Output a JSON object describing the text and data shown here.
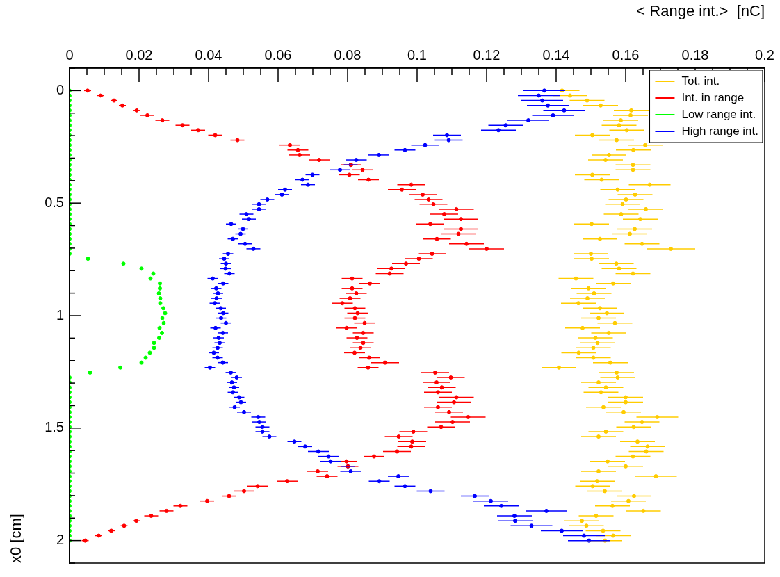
{
  "chart_data": {
    "type": "scatter",
    "xlabel": "< Range int.>  [nC]",
    "ylabel": "x0 [cm]",
    "xlim": [
      0,
      0.2
    ],
    "xticks": [
      0,
      {
        "value": 0.005,
        "label": null
      },
      {
        "value": 0.01,
        "label": null
      },
      {
        "value": 0.015,
        "label": null
      },
      0.02,
      {
        "value": 0.025,
        "label": null
      },
      {
        "value": 0.03,
        "label": null
      },
      {
        "value": 0.035,
        "label": null
      },
      0.04,
      {
        "value": 0.045,
        "label": null
      },
      {
        "value": 0.05,
        "label": null
      },
      {
        "value": 0.055,
        "label": null
      },
      0.06,
      {
        "value": 0.065,
        "label": null
      },
      {
        "value": 0.07,
        "label": null
      },
      {
        "value": 0.075,
        "label": null
      },
      0.08,
      {
        "value": 0.085,
        "label": null
      },
      {
        "value": 0.09,
        "label": null
      },
      {
        "value": 0.095,
        "label": null
      },
      0.1,
      {
        "value": 0.105,
        "label": null
      },
      {
        "value": 0.11,
        "label": null
      },
      {
        "value": 0.115,
        "label": null
      },
      0.12,
      {
        "value": 0.125,
        "label": null
      },
      {
        "value": 0.13,
        "label": null
      },
      {
        "value": 0.135,
        "label": null
      },
      0.14,
      {
        "value": 0.145,
        "label": null
      },
      {
        "value": 0.15,
        "label": null
      },
      {
        "value": 0.155,
        "label": null
      },
      0.16,
      {
        "value": 0.165,
        "label": null
      },
      {
        "value": 0.17,
        "label": null
      },
      {
        "value": 0.175,
        "label": null
      },
      0.18,
      {
        "value": 0.185,
        "label": null
      },
      {
        "value": 0.19,
        "label": null
      },
      {
        "value": 0.195,
        "label": null
      },
      0.2
    ],
    "ylim": [
      2.1,
      -0.1
    ],
    "yticks": [
      {
        "value": -0.1,
        "label": null
      },
      0,
      {
        "value": 0.1,
        "label": null
      },
      {
        "value": 0.2,
        "label": null
      },
      {
        "value": 0.3,
        "label": null
      },
      {
        "value": 0.4,
        "label": null
      },
      0.5,
      {
        "value": 0.6,
        "label": null
      },
      {
        "value": 0.7,
        "label": null
      },
      {
        "value": 0.8,
        "label": null
      },
      {
        "value": 0.9,
        "label": null
      },
      1,
      {
        "value": 1.1,
        "label": null
      },
      {
        "value": 1.2,
        "label": null
      },
      {
        "value": 1.3,
        "label": null
      },
      {
        "value": 1.4,
        "label": null
      },
      1.5,
      {
        "value": 1.6,
        "label": null
      },
      {
        "value": 1.7,
        "label": null
      },
      {
        "value": 1.8,
        "label": null
      },
      {
        "value": 1.9,
        "label": null
      },
      2,
      {
        "value": 2.1,
        "label": null
      }
    ],
    "legend": "top right",
    "marker": "circle",
    "series": [
      {
        "name": "Tot. int.",
        "color": "#ffcc00",
        "x": [
          0.1417,
          0.144,
          0.1489,
          0.1528,
          0.1616,
          0.1614,
          0.1586,
          0.1581,
          0.1603,
          0.1504,
          0.1574,
          0.1656,
          0.1622,
          0.1552,
          0.1542,
          0.1621,
          0.1621,
          0.1504,
          0.1531,
          0.1669,
          0.1577,
          0.1627,
          0.1601,
          0.1591,
          0.1658,
          0.1587,
          0.1642,
          0.1502,
          0.1626,
          0.1612,
          0.1526,
          0.1647,
          0.173,
          0.15,
          0.1502,
          0.1573,
          0.1581,
          0.1621,
          0.1457,
          0.1564,
          0.1493,
          0.1509,
          0.149,
          0.1464,
          0.1526,
          0.1546,
          0.1522,
          0.1569,
          0.1476,
          0.1551,
          0.1513,
          0.1519,
          0.1507,
          0.1465,
          0.1507,
          0.1556,
          0.1408,
          0.1574,
          0.1577,
          0.1522,
          0.1543,
          0.1529,
          0.16,
          0.16,
          0.1536,
          0.1594,
          0.1691,
          0.1647,
          0.1623,
          0.1543,
          0.1522,
          0.1634,
          0.1663,
          0.1659,
          0.1621,
          0.1548,
          0.16,
          0.1522,
          0.1687,
          0.1518,
          0.1505,
          0.154,
          0.1624,
          0.1608,
          0.1562,
          0.1651,
          0.1515,
          0.1474,
          0.1487,
          0.1535,
          0.1564,
          0.154
        ],
        "values": [
          0,
          0.022,
          0.044,
          0.066,
          0.088,
          0.11,
          0.132,
          0.154,
          0.176,
          0.198,
          0.22,
          0.242,
          0.264,
          0.286,
          0.308,
          0.33,
          0.352,
          0.374,
          0.396,
          0.418,
          0.44,
          0.462,
          0.484,
          0.505,
          0.527,
          0.549,
          0.571,
          0.593,
          0.615,
          0.637,
          0.659,
          0.681,
          0.703,
          0.725,
          0.747,
          0.769,
          0.791,
          0.813,
          0.835,
          0.857,
          0.879,
          0.901,
          0.923,
          0.945,
          0.967,
          0.989,
          1.011,
          1.033,
          1.055,
          1.077,
          1.099,
          1.121,
          1.143,
          1.165,
          1.187,
          1.209,
          1.231,
          1.253,
          1.275,
          1.297,
          1.319,
          1.341,
          1.363,
          1.385,
          1.407,
          1.429,
          1.451,
          1.473,
          1.495,
          1.516,
          1.538,
          1.56,
          1.582,
          1.604,
          1.626,
          1.648,
          1.67,
          1.692,
          1.714,
          1.736,
          1.758,
          1.78,
          1.802,
          1.824,
          1.846,
          1.868,
          1.89,
          1.912,
          1.934,
          1.956,
          1.978,
          2.0
        ],
        "xerrors": [
          0.005,
          0.005,
          0.005,
          0.005,
          0.005,
          0.005,
          0.005,
          0.005,
          0.005,
          0.005,
          0.005,
          0.005,
          0.005,
          0.005,
          0.005,
          0.005,
          0.005,
          0.005,
          0.005,
          0.006,
          0.005,
          0.005,
          0.005,
          0.005,
          0.005,
          0.005,
          0.005,
          0.005,
          0.005,
          0.005,
          0.005,
          0.005,
          0.007,
          0.005,
          0.005,
          0.005,
          0.005,
          0.005,
          0.005,
          0.005,
          0.005,
          0.005,
          0.005,
          0.005,
          0.005,
          0.005,
          0.005,
          0.005,
          0.005,
          0.005,
          0.005,
          0.005,
          0.005,
          0.005,
          0.005,
          0.005,
          0.005,
          0.005,
          0.005,
          0.005,
          0.005,
          0.005,
          0.005,
          0.005,
          0.005,
          0.005,
          0.006,
          0.005,
          0.005,
          0.005,
          0.005,
          0.005,
          0.005,
          0.005,
          0.005,
          0.005,
          0.005,
          0.005,
          0.006,
          0.005,
          0.005,
          0.005,
          0.005,
          0.005,
          0.005,
          0.005,
          0.005,
          0.005,
          0.005,
          0.005,
          0.005,
          0.005
        ]
      },
      {
        "name": "Int. in range",
        "color": "#ff0000",
        "x": [
          0.0052,
          0.009,
          0.0128,
          0.0152,
          0.0193,
          0.0224,
          0.0267,
          0.0325,
          0.037,
          0.0419,
          0.0483,
          0.0634,
          0.0657,
          0.0662,
          0.0718,
          0.081,
          0.0843,
          0.0805,
          0.086,
          0.0983,
          0.0956,
          0.1016,
          0.1033,
          0.1047,
          0.1113,
          0.1078,
          0.1126,
          0.1038,
          0.1126,
          0.1119,
          0.1057,
          0.1142,
          0.12,
          0.1043,
          0.1005,
          0.0968,
          0.0926,
          0.0921,
          0.0813,
          0.0864,
          0.0813,
          0.0825,
          0.0807,
          0.0785,
          0.0821,
          0.0829,
          0.0821,
          0.0849,
          0.0797,
          0.0845,
          0.0827,
          0.0845,
          0.0837,
          0.082,
          0.0862,
          0.0908,
          0.0859,
          0.1052,
          0.1097,
          0.1056,
          0.1071,
          0.106,
          0.1113,
          0.1106,
          0.106,
          0.1092,
          0.1147,
          0.1102,
          0.1069,
          0.0989,
          0.0947,
          0.0986,
          0.0983,
          0.0942,
          0.0876,
          0.0797,
          0.0801,
          0.0714,
          0.0741,
          0.0626,
          0.0541,
          0.0502,
          0.0459,
          0.0396,
          0.0319,
          0.0279,
          0.0235,
          0.0192,
          0.0157,
          0.012,
          0.0084,
          0.0045
        ],
        "values": [
          0,
          0.022,
          0.044,
          0.066,
          0.088,
          0.11,
          0.132,
          0.154,
          0.176,
          0.198,
          0.22,
          0.242,
          0.264,
          0.286,
          0.308,
          0.33,
          0.352,
          0.374,
          0.396,
          0.418,
          0.44,
          0.462,
          0.484,
          0.505,
          0.527,
          0.549,
          0.571,
          0.593,
          0.615,
          0.637,
          0.659,
          0.681,
          0.703,
          0.725,
          0.747,
          0.769,
          0.791,
          0.813,
          0.835,
          0.857,
          0.879,
          0.901,
          0.923,
          0.945,
          0.967,
          0.989,
          1.011,
          1.033,
          1.055,
          1.077,
          1.099,
          1.121,
          1.143,
          1.165,
          1.187,
          1.209,
          1.231,
          1.253,
          1.275,
          1.297,
          1.319,
          1.341,
          1.363,
          1.385,
          1.407,
          1.429,
          1.451,
          1.473,
          1.495,
          1.516,
          1.538,
          1.56,
          1.582,
          1.604,
          1.626,
          1.648,
          1.67,
          1.692,
          1.714,
          1.736,
          1.758,
          1.78,
          1.802,
          1.824,
          1.846,
          1.868,
          1.89,
          1.912,
          1.934,
          1.956,
          1.978,
          2.0
        ],
        "xerrors": [
          0.001,
          0.001,
          0.001,
          0.001,
          0.001,
          0.002,
          0.002,
          0.002,
          0.002,
          0.002,
          0.002,
          0.003,
          0.003,
          0.003,
          0.003,
          0.003,
          0.003,
          0.003,
          0.003,
          0.004,
          0.004,
          0.004,
          0.004,
          0.004,
          0.005,
          0.004,
          0.005,
          0.004,
          0.005,
          0.005,
          0.004,
          0.005,
          0.005,
          0.004,
          0.004,
          0.004,
          0.004,
          0.004,
          0.003,
          0.003,
          0.003,
          0.003,
          0.003,
          0.003,
          0.003,
          0.003,
          0.003,
          0.003,
          0.003,
          0.003,
          0.003,
          0.003,
          0.003,
          0.003,
          0.003,
          0.004,
          0.003,
          0.004,
          0.004,
          0.004,
          0.004,
          0.004,
          0.005,
          0.005,
          0.004,
          0.004,
          0.005,
          0.005,
          0.004,
          0.004,
          0.004,
          0.004,
          0.004,
          0.004,
          0.003,
          0.003,
          0.003,
          0.003,
          0.003,
          0.003,
          0.003,
          0.003,
          0.002,
          0.002,
          0.002,
          0.002,
          0.002,
          0.001,
          0.001,
          0.001,
          0.001,
          0.001
        ]
      },
      {
        "name": "Low range int.",
        "color": "#00ff00",
        "x": [
          0,
          0,
          0,
          0,
          0,
          0,
          0,
          0,
          0,
          0,
          0,
          0,
          0,
          0,
          0,
          0,
          0,
          0,
          0,
          0,
          0,
          0,
          0,
          0,
          0,
          0,
          0,
          0,
          0,
          0,
          0,
          0,
          0,
          0,
          0.0053,
          0.0155,
          0.0207,
          0.0241,
          0.0233,
          0.026,
          0.026,
          0.0257,
          0.0261,
          0.0261,
          0.027,
          0.0275,
          0.0267,
          0.0271,
          0.0259,
          0.0266,
          0.0258,
          0.0243,
          0.0243,
          0.0231,
          0.0219,
          0.0207,
          0.0146,
          0.0059,
          0,
          0,
          0,
          0,
          0,
          0,
          0,
          0,
          0,
          0,
          0,
          0,
          0,
          0,
          0,
          0,
          0,
          0,
          0,
          0,
          0,
          0,
          0,
          0,
          0,
          0,
          0,
          0,
          0,
          0,
          0,
          0,
          0,
          0
        ],
        "values": [
          0,
          0.022,
          0.044,
          0.066,
          0.088,
          0.11,
          0.132,
          0.154,
          0.176,
          0.198,
          0.22,
          0.242,
          0.264,
          0.286,
          0.308,
          0.33,
          0.352,
          0.374,
          0.396,
          0.418,
          0.44,
          0.462,
          0.484,
          0.505,
          0.527,
          0.549,
          0.571,
          0.593,
          0.615,
          0.637,
          0.659,
          0.681,
          0.703,
          0.725,
          0.747,
          0.769,
          0.791,
          0.813,
          0.835,
          0.857,
          0.879,
          0.901,
          0.923,
          0.945,
          0.967,
          0.989,
          1.011,
          1.033,
          1.055,
          1.077,
          1.099,
          1.121,
          1.143,
          1.165,
          1.187,
          1.209,
          1.231,
          1.253,
          1.275,
          1.297,
          1.319,
          1.341,
          1.363,
          1.385,
          1.407,
          1.429,
          1.451,
          1.473,
          1.495,
          1.516,
          1.538,
          1.56,
          1.582,
          1.604,
          1.626,
          1.648,
          1.67,
          1.692,
          1.714,
          1.736,
          1.758,
          1.78,
          1.802,
          1.824,
          1.846,
          1.868,
          1.89,
          1.912,
          1.934,
          1.956,
          1.978,
          2.0
        ]
      },
      {
        "name": "High range int.",
        "color": "#0000ff",
        "x": [
          0.1366,
          0.135,
          0.136,
          0.1376,
          0.1423,
          0.1391,
          0.132,
          0.1255,
          0.1234,
          0.1086,
          0.1091,
          0.1023,
          0.0965,
          0.089,
          0.0825,
          0.0809,
          0.0778,
          0.0699,
          0.067,
          0.0686,
          0.062,
          0.0611,
          0.0569,
          0.0545,
          0.0545,
          0.0509,
          0.0516,
          0.0465,
          0.0499,
          0.0492,
          0.047,
          0.0505,
          0.0529,
          0.0456,
          0.0445,
          0.045,
          0.0449,
          0.046,
          0.0412,
          0.0442,
          0.0422,
          0.0427,
          0.0423,
          0.0418,
          0.0435,
          0.0442,
          0.0436,
          0.045,
          0.042,
          0.0441,
          0.0429,
          0.0432,
          0.0426,
          0.0415,
          0.0426,
          0.0441,
          0.0404,
          0.0464,
          0.0481,
          0.0467,
          0.0473,
          0.047,
          0.0488,
          0.0493,
          0.0475,
          0.0502,
          0.0543,
          0.0546,
          0.0555,
          0.0555,
          0.0575,
          0.0647,
          0.0678,
          0.0716,
          0.0745,
          0.0751,
          0.0801,
          0.0809,
          0.0946,
          0.0891,
          0.0965,
          0.1039,
          0.1166,
          0.1212,
          0.1242,
          0.1372,
          0.128,
          0.1282,
          0.1329,
          0.1416,
          0.148,
          0.1494
        ],
        "values": [
          0,
          0.022,
          0.044,
          0.066,
          0.088,
          0.11,
          0.132,
          0.154,
          0.176,
          0.198,
          0.22,
          0.242,
          0.264,
          0.286,
          0.308,
          0.33,
          0.352,
          0.374,
          0.396,
          0.418,
          0.44,
          0.462,
          0.484,
          0.505,
          0.527,
          0.549,
          0.571,
          0.593,
          0.615,
          0.637,
          0.659,
          0.681,
          0.703,
          0.725,
          0.747,
          0.769,
          0.791,
          0.813,
          0.835,
          0.857,
          0.879,
          0.901,
          0.923,
          0.945,
          0.967,
          0.989,
          1.011,
          1.033,
          1.055,
          1.077,
          1.099,
          1.121,
          1.143,
          1.165,
          1.187,
          1.209,
          1.231,
          1.253,
          1.275,
          1.297,
          1.319,
          1.341,
          1.363,
          1.385,
          1.407,
          1.429,
          1.451,
          1.473,
          1.495,
          1.516,
          1.538,
          1.56,
          1.582,
          1.604,
          1.626,
          1.648,
          1.67,
          1.692,
          1.714,
          1.736,
          1.758,
          1.78,
          1.802,
          1.824,
          1.846,
          1.868,
          1.89,
          1.912,
          1.934,
          1.956,
          1.978,
          2.0
        ],
        "xerrors": [
          0.006,
          0.006,
          0.006,
          0.006,
          0.006,
          0.006,
          0.006,
          0.005,
          0.005,
          0.004,
          0.004,
          0.004,
          0.003,
          0.003,
          0.003,
          0.002,
          0.003,
          0.002,
          0.002,
          0.002,
          0.002,
          0.002,
          0.002,
          0.002,
          0.002,
          0.002,
          0.002,
          0.0015,
          0.0015,
          0.0015,
          0.0015,
          0.002,
          0.002,
          0.0015,
          0.0015,
          0.0015,
          0.0015,
          0.0015,
          0.0015,
          0.0015,
          0.0015,
          0.0015,
          0.0015,
          0.0015,
          0.0015,
          0.0015,
          0.0015,
          0.0015,
          0.0015,
          0.0015,
          0.0015,
          0.0015,
          0.0015,
          0.0015,
          0.0015,
          0.0015,
          0.0015,
          0.0015,
          0.0015,
          0.0015,
          0.0015,
          0.0015,
          0.0015,
          0.0015,
          0.0015,
          0.002,
          0.002,
          0.002,
          0.002,
          0.002,
          0.002,
          0.002,
          0.002,
          0.003,
          0.003,
          0.003,
          0.002,
          0.003,
          0.003,
          0.003,
          0.003,
          0.004,
          0.004,
          0.005,
          0.005,
          0.006,
          0.005,
          0.005,
          0.006,
          0.006,
          0.006,
          0.006
        ]
      }
    ]
  }
}
